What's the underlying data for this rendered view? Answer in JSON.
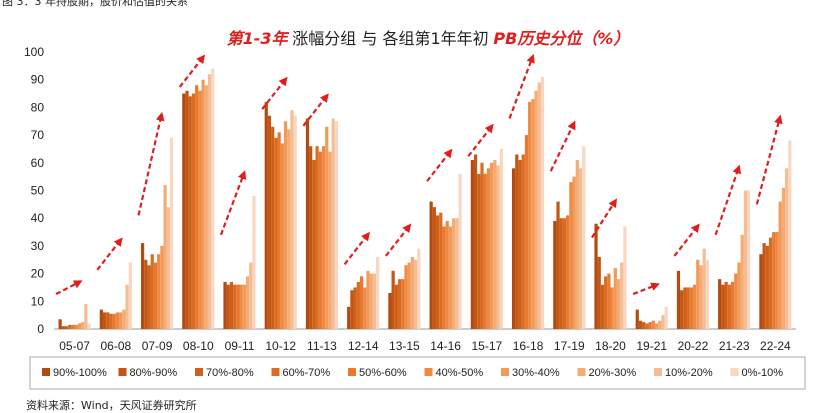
{
  "figure_caption": "图 3：3 年持股期，股价和估值的关系",
  "source_note": "资料来源：Wind，天风证券研究所",
  "chart_data": {
    "type": "bar",
    "title_highlight": "第1-3年",
    "title_part1": " 涨幅分组  与  各组第1年年初",
    "title_highlight2": "PB历史分位（%）",
    "ylim": [
      0,
      100
    ],
    "yticks": [
      0,
      10,
      20,
      30,
      40,
      50,
      60,
      70,
      80,
      90,
      100
    ],
    "grid": false,
    "legend_position": "bottom",
    "categories": [
      "05-07",
      "06-08",
      "07-09",
      "08-10",
      "09-11",
      "10-12",
      "11-13",
      "12-14",
      "13-15",
      "14-16",
      "15-17",
      "16-18",
      "17-19",
      "18-20",
      "19-21",
      "20-22",
      "21-23",
      "22-24"
    ],
    "series": [
      {
        "name": "90%-100%",
        "color": "#b34b10",
        "values": [
          3.5,
          7,
          31,
          85,
          17,
          82,
          76,
          8,
          13,
          46,
          61,
          58,
          39,
          38,
          7,
          21,
          18,
          27
        ]
      },
      {
        "name": "80%-90%",
        "color": "#c25614",
        "values": [
          1,
          6,
          25,
          86,
          16,
          77,
          66,
          14,
          21,
          44,
          63,
          63,
          46,
          26,
          3,
          14,
          16,
          31
        ]
      },
      {
        "name": "70%-80%",
        "color": "#cf6018",
        "values": [
          1,
          6,
          23,
          84,
          17,
          73,
          61,
          15,
          16,
          41,
          56,
          61,
          40,
          16,
          2.5,
          15,
          17,
          30
        ]
      },
      {
        "name": "60%-70%",
        "color": "#dc6b22",
        "values": [
          1.5,
          5.5,
          27,
          85,
          16,
          69,
          66,
          17,
          18,
          42,
          60,
          63,
          40,
          19,
          2,
          15,
          16,
          33
        ]
      },
      {
        "name": "50%-60%",
        "color": "#e77a30",
        "values": [
          1.5,
          5.5,
          24,
          88,
          16,
          71,
          64,
          19,
          18,
          37,
          56,
          70,
          41,
          20,
          2.5,
          15,
          17,
          35
        ]
      },
      {
        "name": "40%-50%",
        "color": "#ef8a44",
        "values": [
          1.5,
          6,
          27,
          86,
          16,
          67,
          66,
          15,
          23,
          39,
          58,
          82,
          53,
          15,
          3,
          16,
          20,
          35
        ]
      },
      {
        "name": "30%-40%",
        "color": "#f29a5a",
        "values": [
          2,
          6,
          30,
          90,
          16,
          75,
          73,
          21,
          24,
          37,
          60,
          83,
          55,
          22,
          2,
          25,
          24,
          46
        ]
      },
      {
        "name": "20%-30%",
        "color": "#f4ac74",
        "values": [
          2.5,
          7,
          52,
          88,
          19,
          72,
          64,
          20,
          26,
          40,
          61,
          86,
          61,
          18,
          3,
          23,
          34,
          51
        ]
      },
      {
        "name": "10%-20%",
        "color": "#f5bd93",
        "values": [
          9,
          16,
          44,
          92,
          24,
          79,
          76,
          20,
          25,
          40,
          59,
          89,
          58,
          24,
          5,
          29,
          50,
          58
        ]
      },
      {
        "name": "0%-10%",
        "color": "#f8d6bf",
        "values": [
          2,
          24,
          69,
          94,
          48,
          77,
          75,
          26,
          29,
          56,
          65,
          91,
          66,
          37,
          8,
          25,
          50,
          68
        ]
      }
    ]
  }
}
